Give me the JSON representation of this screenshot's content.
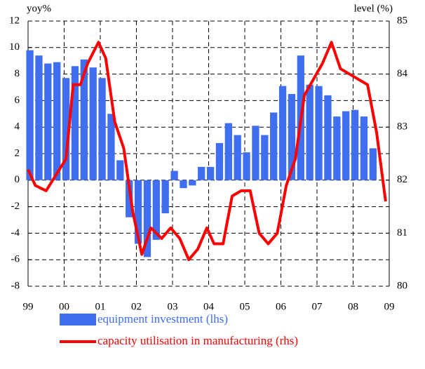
{
  "chart_data": {
    "type": "combo",
    "y_label": "yoy%",
    "y2_label": "level (%)",
    "xlim": [
      1999,
      2009
    ],
    "xticks": [
      {
        "value": 1999,
        "label": "99"
      },
      {
        "value": 2000,
        "label": "00"
      },
      {
        "value": 2001,
        "label": "01"
      },
      {
        "value": 2002,
        "label": "02"
      },
      {
        "value": 2003,
        "label": "03"
      },
      {
        "value": 2004,
        "label": "04"
      },
      {
        "value": 2005,
        "label": "05"
      },
      {
        "value": 2006,
        "label": "06"
      },
      {
        "value": 2007,
        "label": "07"
      },
      {
        "value": 2008,
        "label": "08"
      },
      {
        "value": 2009,
        "label": "09"
      }
    ],
    "ylim": [
      -8,
      12
    ],
    "yticks": [
      -8,
      -6,
      -4,
      -2,
      0,
      2,
      4,
      6,
      8,
      10,
      12
    ],
    "y2lim": [
      80,
      85
    ],
    "y2ticks": [
      80,
      81,
      82,
      83,
      84,
      85
    ],
    "grid": true,
    "series": [
      {
        "name": "equipment investment (lhs)",
        "type": "bar",
        "color": "#3f6ef0",
        "x": [
          1999.05,
          1999.3,
          1999.55,
          1999.8,
          2000.05,
          2000.3,
          2000.55,
          2000.8,
          2001.05,
          2001.3,
          2001.55,
          2001.8,
          2002.05,
          2002.3,
          2002.55,
          2002.8,
          2003.05,
          2003.3,
          2003.55,
          2003.8,
          2004.05,
          2004.3,
          2004.55,
          2004.8,
          2005.05,
          2005.3,
          2005.55,
          2005.8,
          2006.05,
          2006.3,
          2006.55,
          2006.8,
          2007.05,
          2007.3,
          2007.55,
          2007.8,
          2008.05,
          2008.3,
          2008.55
        ],
        "values": [
          9.8,
          9.4,
          8.8,
          8.9,
          7.7,
          8.6,
          9.1,
          8.5,
          7.7,
          5.0,
          1.5,
          -2.8,
          -4.8,
          -5.8,
          -4.5,
          -2.5,
          0.7,
          -0.6,
          -0.4,
          1.0,
          1.0,
          2.8,
          4.3,
          3.4,
          2.1,
          4.1,
          3.4,
          5.1,
          7.1,
          6.5,
          9.4,
          7.2,
          7.1,
          6.4,
          4.8,
          5.2,
          5.3,
          4.8,
          2.4
        ]
      },
      {
        "name": "capacity utilisation in manufacturing (rhs)",
        "type": "line",
        "color": "#ff0000",
        "axis": "y2",
        "x": [
          1999.0,
          1999.2,
          1999.5,
          2000.05,
          2000.25,
          2000.45,
          2000.65,
          2000.95,
          2001.15,
          2001.4,
          2001.65,
          2001.9,
          2002.15,
          2002.4,
          2002.7,
          2002.95,
          2003.2,
          2003.45,
          2003.7,
          2003.95,
          2004.15,
          2004.4,
          2004.65,
          2004.9,
          2005.15,
          2005.4,
          2005.65,
          2005.9,
          2006.15,
          2006.4,
          2006.65,
          2007.15,
          2007.4,
          2007.65,
          2008.4,
          2008.65,
          2008.9
        ],
        "values": [
          82.2,
          81.9,
          81.8,
          82.4,
          83.8,
          83.8,
          84.2,
          84.6,
          84.3,
          83.1,
          82.6,
          81.4,
          80.6,
          81.1,
          80.9,
          81.1,
          80.9,
          80.5,
          80.7,
          81.1,
          80.8,
          80.8,
          81.7,
          81.8,
          81.8,
          81.0,
          80.8,
          81.0,
          81.9,
          82.4,
          83.6,
          84.2,
          84.6,
          84.1,
          83.8,
          82.9,
          81.6
        ]
      }
    ]
  }
}
